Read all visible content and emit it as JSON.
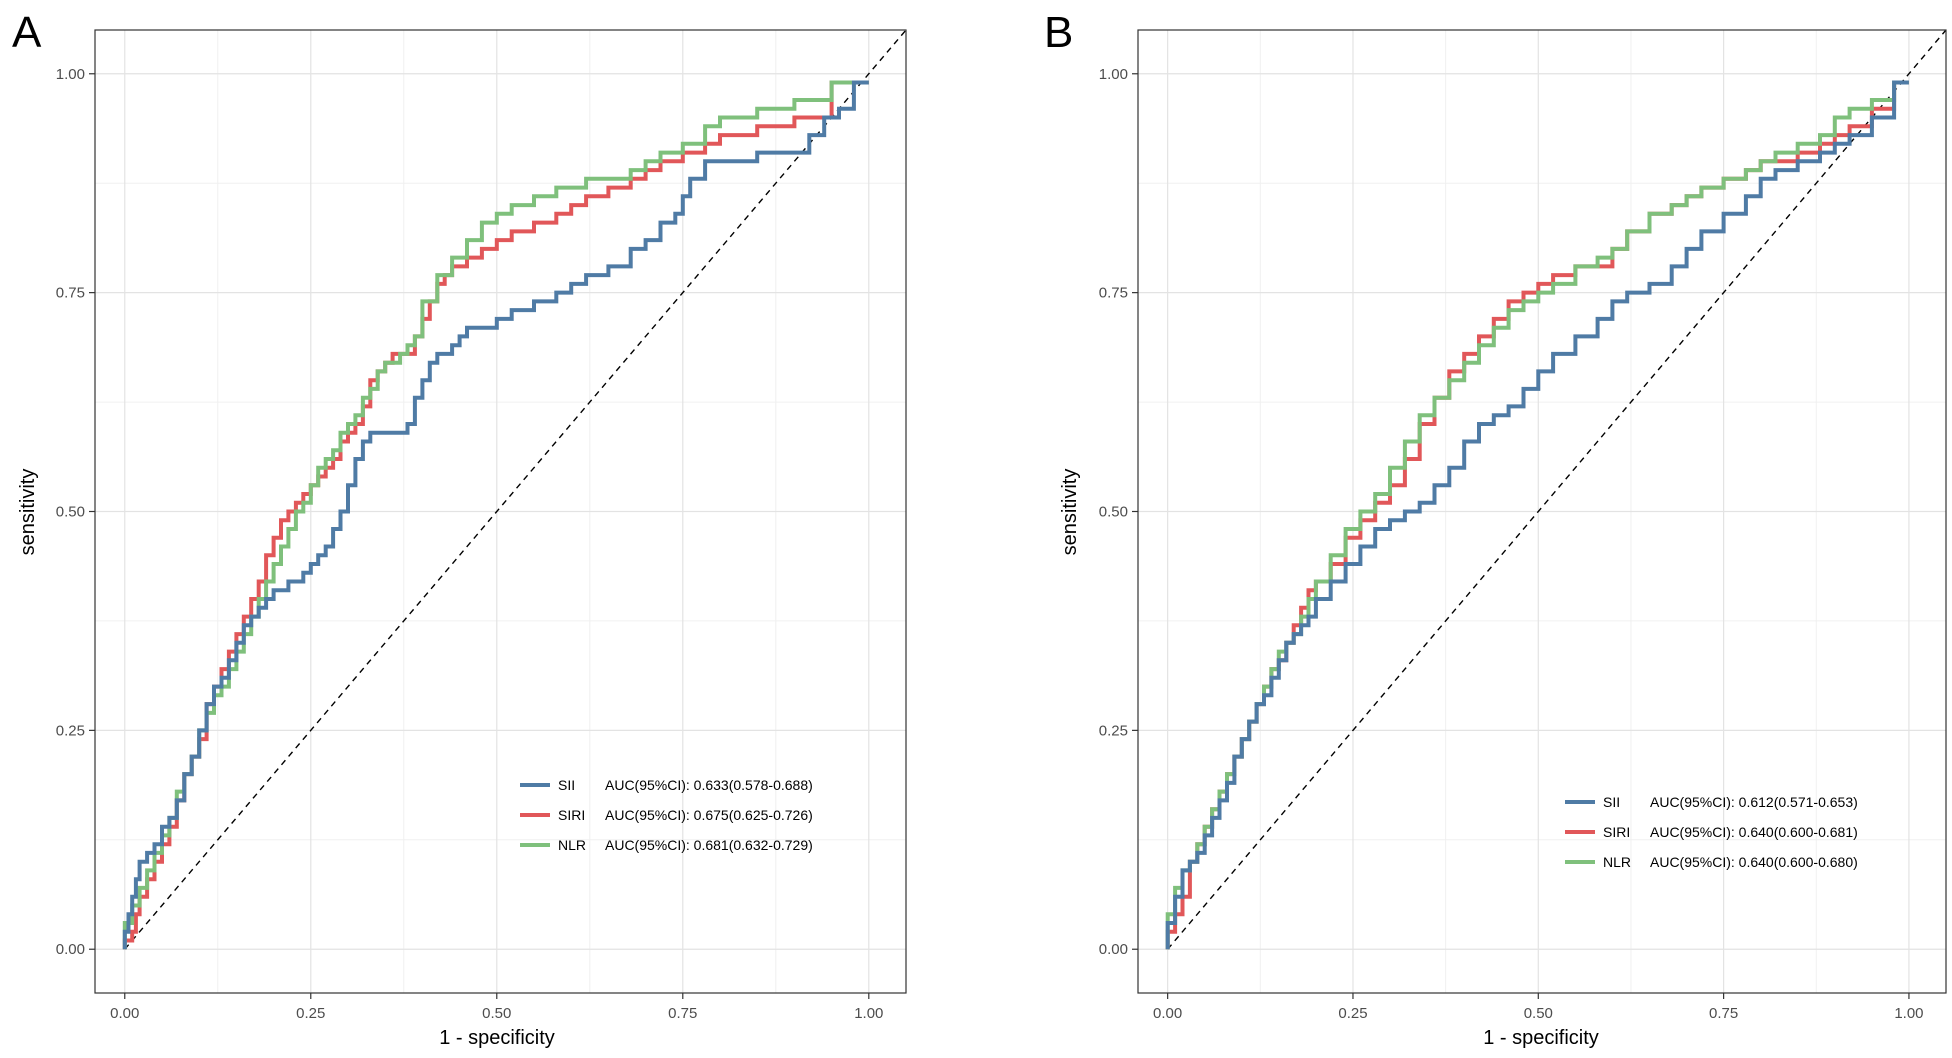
{
  "chart_data": [
    {
      "panel_label": "A",
      "type": "line",
      "title": "",
      "xlabel": "1 - specificity",
      "ylabel": "sensitivity",
      "xlim": [
        -0.04,
        1.05
      ],
      "ylim": [
        -0.05,
        1.05
      ],
      "xticks": [
        0,
        0.25,
        0.5,
        0.75,
        1
      ],
      "yticks": [
        0,
        0.25,
        0.5,
        0.75,
        1
      ],
      "xtick_labels": [
        "0.00",
        "0.25",
        "0.50",
        "0.75",
        "1.00"
      ],
      "ytick_labels": [
        "0.00",
        "0.25",
        "0.50",
        "0.75",
        "1.00"
      ],
      "grid": true,
      "diagonal_reference": true,
      "legend_position": "bottom-right",
      "series": [
        {
          "name": "SII",
          "label": "AUC(95%CI): 0.633(0.578-0.688)",
          "color": "#4F7BA5",
          "x": [
            0,
            0.005,
            0.01,
            0.015,
            0.02,
            0.025,
            0.03,
            0.04,
            0.05,
            0.06,
            0.07,
            0.08,
            0.09,
            0.1,
            0.11,
            0.12,
            0.13,
            0.14,
            0.15,
            0.16,
            0.17,
            0.18,
            0.19,
            0.2,
            0.22,
            0.24,
            0.25,
            0.26,
            0.27,
            0.28,
            0.29,
            0.3,
            0.31,
            0.32,
            0.33,
            0.34,
            0.35,
            0.36,
            0.38,
            0.39,
            0.4,
            0.41,
            0.42,
            0.44,
            0.45,
            0.46,
            0.48,
            0.5,
            0.52,
            0.55,
            0.58,
            0.6,
            0.62,
            0.65,
            0.68,
            0.7,
            0.72,
            0.74,
            0.75,
            0.76,
            0.78,
            0.8,
            0.85,
            0.9,
            0.92,
            0.94,
            0.96,
            0.98,
            1
          ],
          "y": [
            0,
            0.02,
            0.04,
            0.06,
            0.08,
            0.1,
            0.1,
            0.11,
            0.12,
            0.14,
            0.15,
            0.17,
            0.2,
            0.22,
            0.25,
            0.28,
            0.3,
            0.31,
            0.33,
            0.35,
            0.37,
            0.38,
            0.39,
            0.4,
            0.41,
            0.42,
            0.43,
            0.44,
            0.45,
            0.46,
            0.48,
            0.5,
            0.53,
            0.56,
            0.58,
            0.59,
            0.59,
            0.59,
            0.59,
            0.6,
            0.63,
            0.65,
            0.67,
            0.68,
            0.69,
            0.7,
            0.71,
            0.71,
            0.72,
            0.73,
            0.74,
            0.75,
            0.76,
            0.77,
            0.78,
            0.8,
            0.81,
            0.83,
            0.84,
            0.86,
            0.88,
            0.9,
            0.9,
            0.91,
            0.91,
            0.93,
            0.95,
            0.96,
            0.99
          ]
        },
        {
          "name": "SIRI",
          "label": "AUC(95%CI): 0.675(0.625-0.726)",
          "color": "#E15759",
          "x": [
            0,
            0.01,
            0.015,
            0.02,
            0.03,
            0.04,
            0.05,
            0.06,
            0.07,
            0.08,
            0.09,
            0.1,
            0.11,
            0.12,
            0.13,
            0.14,
            0.15,
            0.16,
            0.17,
            0.18,
            0.19,
            0.2,
            0.21,
            0.22,
            0.23,
            0.24,
            0.25,
            0.26,
            0.27,
            0.28,
            0.29,
            0.3,
            0.31,
            0.32,
            0.33,
            0.34,
            0.35,
            0.36,
            0.37,
            0.38,
            0.39,
            0.4,
            0.41,
            0.42,
            0.43,
            0.44,
            0.46,
            0.48,
            0.5,
            0.52,
            0.55,
            0.58,
            0.6,
            0.62,
            0.65,
            0.68,
            0.7,
            0.72,
            0.75,
            0.78,
            0.8,
            0.85,
            0.9,
            0.95,
            1
          ],
          "y": [
            0,
            0.01,
            0.02,
            0.04,
            0.06,
            0.08,
            0.1,
            0.12,
            0.14,
            0.17,
            0.2,
            0.22,
            0.24,
            0.28,
            0.3,
            0.32,
            0.34,
            0.36,
            0.38,
            0.4,
            0.42,
            0.45,
            0.47,
            0.49,
            0.5,
            0.51,
            0.52,
            0.53,
            0.54,
            0.55,
            0.56,
            0.58,
            0.59,
            0.6,
            0.62,
            0.65,
            0.66,
            0.67,
            0.68,
            0.68,
            0.68,
            0.7,
            0.72,
            0.74,
            0.76,
            0.77,
            0.78,
            0.79,
            0.8,
            0.81,
            0.82,
            0.83,
            0.84,
            0.85,
            0.86,
            0.87,
            0.88,
            0.89,
            0.9,
            0.91,
            0.92,
            0.93,
            0.94,
            0.95,
            0.99
          ]
        },
        {
          "name": "NLR",
          "label": "AUC(95%CI): 0.681(0.632-0.729)",
          "color": "#7FC07C",
          "x": [
            0,
            0.01,
            0.02,
            0.03,
            0.04,
            0.05,
            0.06,
            0.07,
            0.08,
            0.09,
            0.1,
            0.11,
            0.12,
            0.13,
            0.14,
            0.15,
            0.16,
            0.17,
            0.18,
            0.19,
            0.2,
            0.21,
            0.22,
            0.23,
            0.24,
            0.25,
            0.26,
            0.27,
            0.28,
            0.29,
            0.3,
            0.31,
            0.32,
            0.33,
            0.34,
            0.35,
            0.36,
            0.37,
            0.38,
            0.39,
            0.4,
            0.42,
            0.44,
            0.46,
            0.48,
            0.5,
            0.52,
            0.55,
            0.58,
            0.6,
            0.62,
            0.65,
            0.68,
            0.7,
            0.72,
            0.75,
            0.78,
            0.8,
            0.82,
            0.85,
            0.9,
            0.95,
            1
          ],
          "y": [
            0,
            0.03,
            0.05,
            0.07,
            0.09,
            0.11,
            0.13,
            0.15,
            0.18,
            0.2,
            0.22,
            0.25,
            0.27,
            0.29,
            0.3,
            0.32,
            0.34,
            0.36,
            0.38,
            0.4,
            0.42,
            0.44,
            0.46,
            0.48,
            0.5,
            0.51,
            0.53,
            0.55,
            0.56,
            0.57,
            0.59,
            0.6,
            0.61,
            0.63,
            0.64,
            0.66,
            0.67,
            0.67,
            0.68,
            0.69,
            0.7,
            0.74,
            0.77,
            0.79,
            0.81,
            0.83,
            0.84,
            0.85,
            0.86,
            0.87,
            0.87,
            0.88,
            0.88,
            0.89,
            0.9,
            0.91,
            0.92,
            0.94,
            0.95,
            0.95,
            0.96,
            0.97,
            0.99
          ]
        }
      ]
    },
    {
      "panel_label": "B",
      "type": "line",
      "title": "",
      "xlabel": "1 - specificity",
      "ylabel": "sensitivity",
      "xlim": [
        -0.04,
        1.05
      ],
      "ylim": [
        -0.05,
        1.05
      ],
      "xticks": [
        0,
        0.25,
        0.5,
        0.75,
        1
      ],
      "yticks": [
        0,
        0.25,
        0.5,
        0.75,
        1
      ],
      "xtick_labels": [
        "0.00",
        "0.25",
        "0.50",
        "0.75",
        "1.00"
      ],
      "ytick_labels": [
        "0.00",
        "0.25",
        "0.50",
        "0.75",
        "1.00"
      ],
      "grid": true,
      "diagonal_reference": true,
      "legend_position": "bottom-right",
      "series": [
        {
          "name": "SII",
          "label": "AUC(95%CI): 0.612(0.571-0.653)",
          "color": "#4F7BA5",
          "x": [
            0,
            0.01,
            0.02,
            0.03,
            0.04,
            0.05,
            0.06,
            0.07,
            0.08,
            0.09,
            0.1,
            0.11,
            0.12,
            0.13,
            0.14,
            0.15,
            0.16,
            0.17,
            0.18,
            0.19,
            0.2,
            0.22,
            0.24,
            0.26,
            0.28,
            0.3,
            0.32,
            0.34,
            0.36,
            0.38,
            0.4,
            0.42,
            0.44,
            0.46,
            0.48,
            0.5,
            0.52,
            0.55,
            0.58,
            0.6,
            0.62,
            0.65,
            0.68,
            0.7,
            0.72,
            0.75,
            0.78,
            0.8,
            0.82,
            0.85,
            0.88,
            0.9,
            0.92,
            0.95,
            0.98,
            1
          ],
          "y": [
            0,
            0.03,
            0.06,
            0.09,
            0.1,
            0.11,
            0.13,
            0.15,
            0.17,
            0.19,
            0.22,
            0.24,
            0.26,
            0.28,
            0.29,
            0.31,
            0.33,
            0.35,
            0.36,
            0.37,
            0.38,
            0.4,
            0.42,
            0.44,
            0.46,
            0.48,
            0.49,
            0.5,
            0.51,
            0.53,
            0.55,
            0.58,
            0.6,
            0.61,
            0.62,
            0.64,
            0.66,
            0.68,
            0.7,
            0.72,
            0.74,
            0.75,
            0.76,
            0.78,
            0.8,
            0.82,
            0.84,
            0.86,
            0.88,
            0.89,
            0.9,
            0.91,
            0.92,
            0.93,
            0.95,
            0.99
          ]
        },
        {
          "name": "SIRI",
          "label": "AUC(95%CI): 0.640(0.600-0.681)",
          "color": "#E15759",
          "x": [
            0,
            0.01,
            0.02,
            0.03,
            0.04,
            0.05,
            0.06,
            0.07,
            0.08,
            0.09,
            0.1,
            0.11,
            0.12,
            0.13,
            0.14,
            0.15,
            0.16,
            0.17,
            0.18,
            0.19,
            0.2,
            0.22,
            0.24,
            0.26,
            0.28,
            0.3,
            0.32,
            0.34,
            0.36,
            0.38,
            0.4,
            0.42,
            0.44,
            0.46,
            0.48,
            0.5,
            0.52,
            0.55,
            0.58,
            0.6,
            0.62,
            0.65,
            0.68,
            0.7,
            0.72,
            0.75,
            0.78,
            0.8,
            0.82,
            0.85,
            0.88,
            0.9,
            0.92,
            0.95,
            0.98,
            1
          ],
          "y": [
            0,
            0.02,
            0.04,
            0.06,
            0.1,
            0.12,
            0.14,
            0.16,
            0.18,
            0.2,
            0.22,
            0.24,
            0.26,
            0.28,
            0.3,
            0.32,
            0.33,
            0.35,
            0.37,
            0.39,
            0.41,
            0.42,
            0.44,
            0.47,
            0.49,
            0.51,
            0.53,
            0.56,
            0.6,
            0.63,
            0.66,
            0.68,
            0.7,
            0.72,
            0.74,
            0.75,
            0.76,
            0.77,
            0.78,
            0.78,
            0.8,
            0.82,
            0.84,
            0.85,
            0.86,
            0.87,
            0.88,
            0.89,
            0.9,
            0.9,
            0.91,
            0.92,
            0.93,
            0.94,
            0.96,
            0.99
          ]
        },
        {
          "name": "NLR",
          "label": "AUC(95%CI): 0.640(0.600-0.680)",
          "color": "#7FC07C",
          "x": [
            0,
            0.01,
            0.02,
            0.03,
            0.04,
            0.05,
            0.06,
            0.07,
            0.08,
            0.09,
            0.1,
            0.11,
            0.12,
            0.13,
            0.14,
            0.15,
            0.16,
            0.17,
            0.18,
            0.19,
            0.2,
            0.22,
            0.24,
            0.26,
            0.28,
            0.3,
            0.32,
            0.34,
            0.36,
            0.38,
            0.4,
            0.42,
            0.44,
            0.46,
            0.48,
            0.5,
            0.52,
            0.55,
            0.58,
            0.6,
            0.62,
            0.65,
            0.68,
            0.7,
            0.72,
            0.75,
            0.78,
            0.8,
            0.82,
            0.85,
            0.88,
            0.9,
            0.92,
            0.95,
            0.98,
            1
          ],
          "y": [
            0,
            0.04,
            0.07,
            0.09,
            0.1,
            0.12,
            0.14,
            0.16,
            0.18,
            0.2,
            0.22,
            0.24,
            0.26,
            0.28,
            0.3,
            0.32,
            0.34,
            0.35,
            0.36,
            0.38,
            0.4,
            0.42,
            0.45,
            0.48,
            0.5,
            0.52,
            0.55,
            0.58,
            0.61,
            0.63,
            0.65,
            0.67,
            0.69,
            0.71,
            0.73,
            0.74,
            0.75,
            0.76,
            0.78,
            0.79,
            0.8,
            0.82,
            0.84,
            0.85,
            0.86,
            0.87,
            0.88,
            0.89,
            0.9,
            0.91,
            0.92,
            0.93,
            0.95,
            0.96,
            0.97,
            0.99
          ]
        }
      ]
    }
  ]
}
